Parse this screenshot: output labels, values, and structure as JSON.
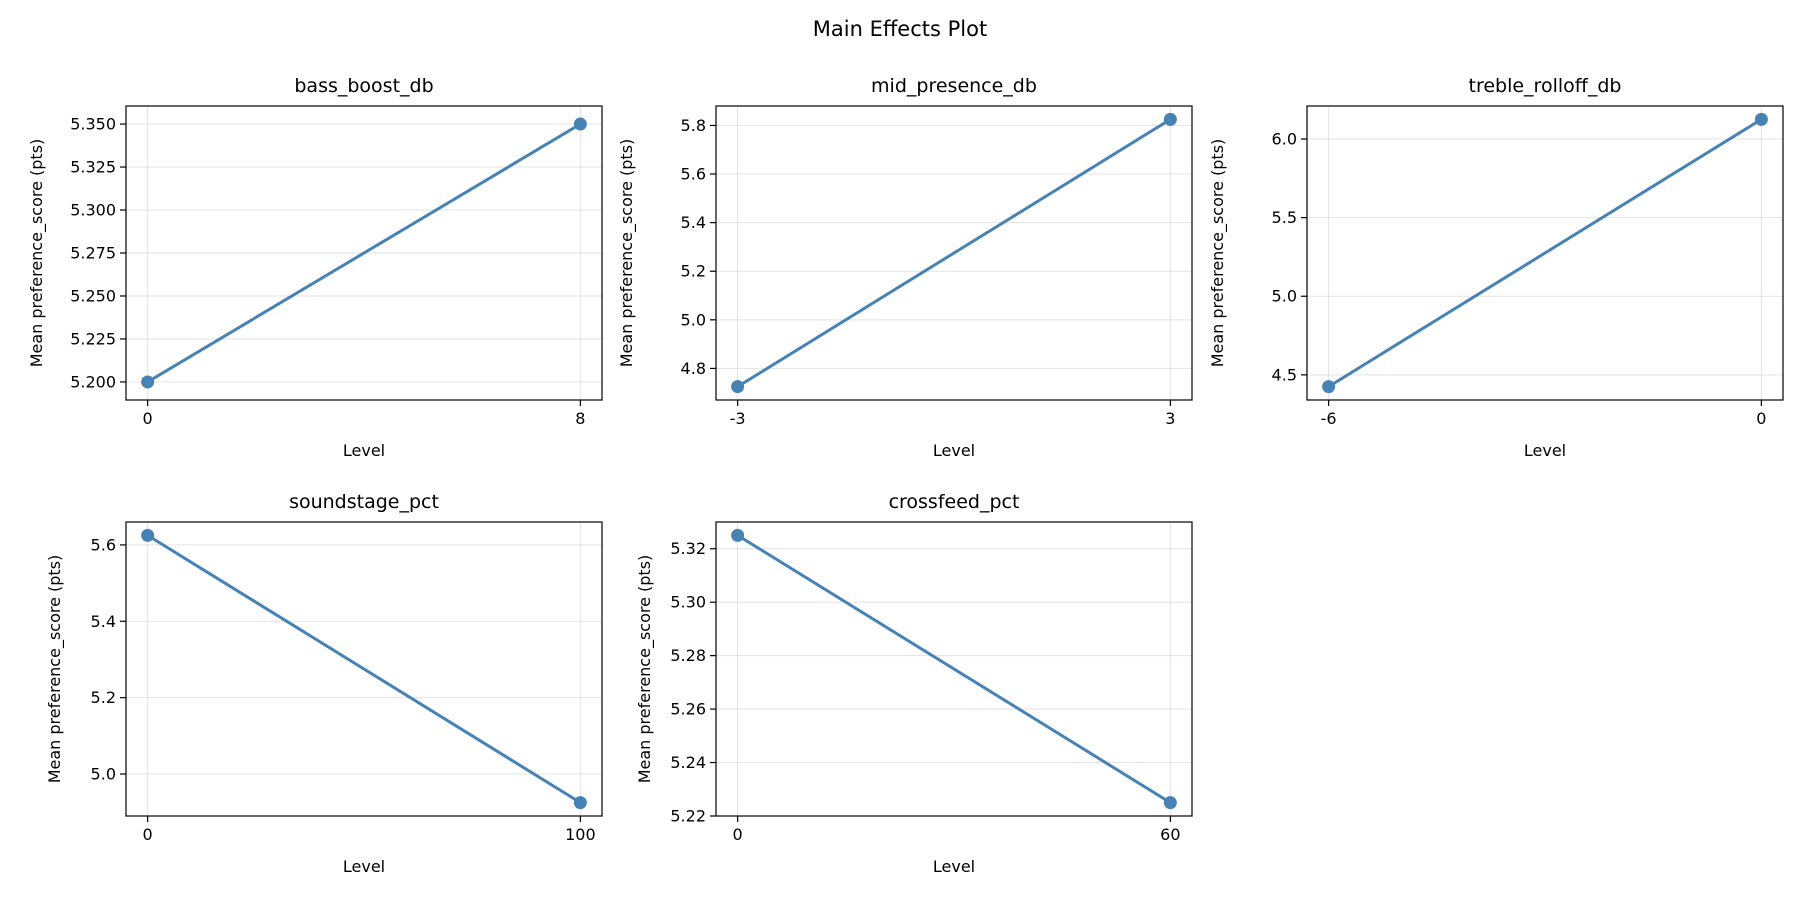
{
  "figure": {
    "title": "Main Effects Plot"
  },
  "style": {
    "line_color": "#4682b4",
    "grid": true
  },
  "chart_data": [
    {
      "type": "line",
      "title": "bass_boost_db",
      "xlabel": "Level",
      "ylabel": "Mean preference_score (pts)",
      "x_ticks": [
        "0",
        "8"
      ],
      "y_ticks": [
        "5.200",
        "5.225",
        "5.250",
        "5.275",
        "5.300",
        "5.325",
        "5.350"
      ],
      "ylim": [
        5.1895,
        5.3605
      ],
      "series": [
        {
          "x": [
            0,
            8
          ],
          "values": [
            5.2,
            5.35
          ]
        }
      ]
    },
    {
      "type": "line",
      "title": "mid_presence_db",
      "xlabel": "Level",
      "ylabel": "Mean preference_score (pts)",
      "x_ticks": [
        "-3",
        "3"
      ],
      "y_ticks": [
        "4.8",
        "5.0",
        "5.2",
        "5.4",
        "5.6",
        "5.8"
      ],
      "ylim": [
        4.67,
        5.88
      ],
      "series": [
        {
          "x": [
            -3,
            3
          ],
          "values": [
            4.725,
            5.825
          ]
        }
      ]
    },
    {
      "type": "line",
      "title": "treble_rolloff_db",
      "xlabel": "Level",
      "ylabel": "Mean preference_score (pts)",
      "x_ticks": [
        "-6",
        "0"
      ],
      "y_ticks": [
        "4.5",
        "5.0",
        "5.5",
        "6.0"
      ],
      "ylim": [
        4.34,
        6.21
      ],
      "series": [
        {
          "x": [
            -6,
            0
          ],
          "values": [
            4.425,
            6.125
          ]
        }
      ]
    },
    {
      "type": "line",
      "title": "soundstage_pct",
      "xlabel": "Level",
      "ylabel": "Mean preference_score (pts)",
      "x_ticks": [
        "0",
        "100"
      ],
      "y_ticks": [
        "5.0",
        "5.2",
        "5.4",
        "5.6"
      ],
      "ylim": [
        4.89,
        5.66
      ],
      "series": [
        {
          "x": [
            0,
            100
          ],
          "values": [
            5.625,
            4.925
          ]
        }
      ]
    },
    {
      "type": "line",
      "title": "crossfeed_pct",
      "xlabel": "Level",
      "ylabel": "Mean preference_score (pts)",
      "x_ticks": [
        "0",
        "60"
      ],
      "y_ticks": [
        "5.22",
        "5.24",
        "5.26",
        "5.28",
        "5.30",
        "5.32"
      ],
      "ylim": [
        5.22,
        5.33
      ],
      "series": [
        {
          "x": [
            0,
            60
          ],
          "values": [
            5.325,
            5.225
          ]
        }
      ]
    }
  ]
}
